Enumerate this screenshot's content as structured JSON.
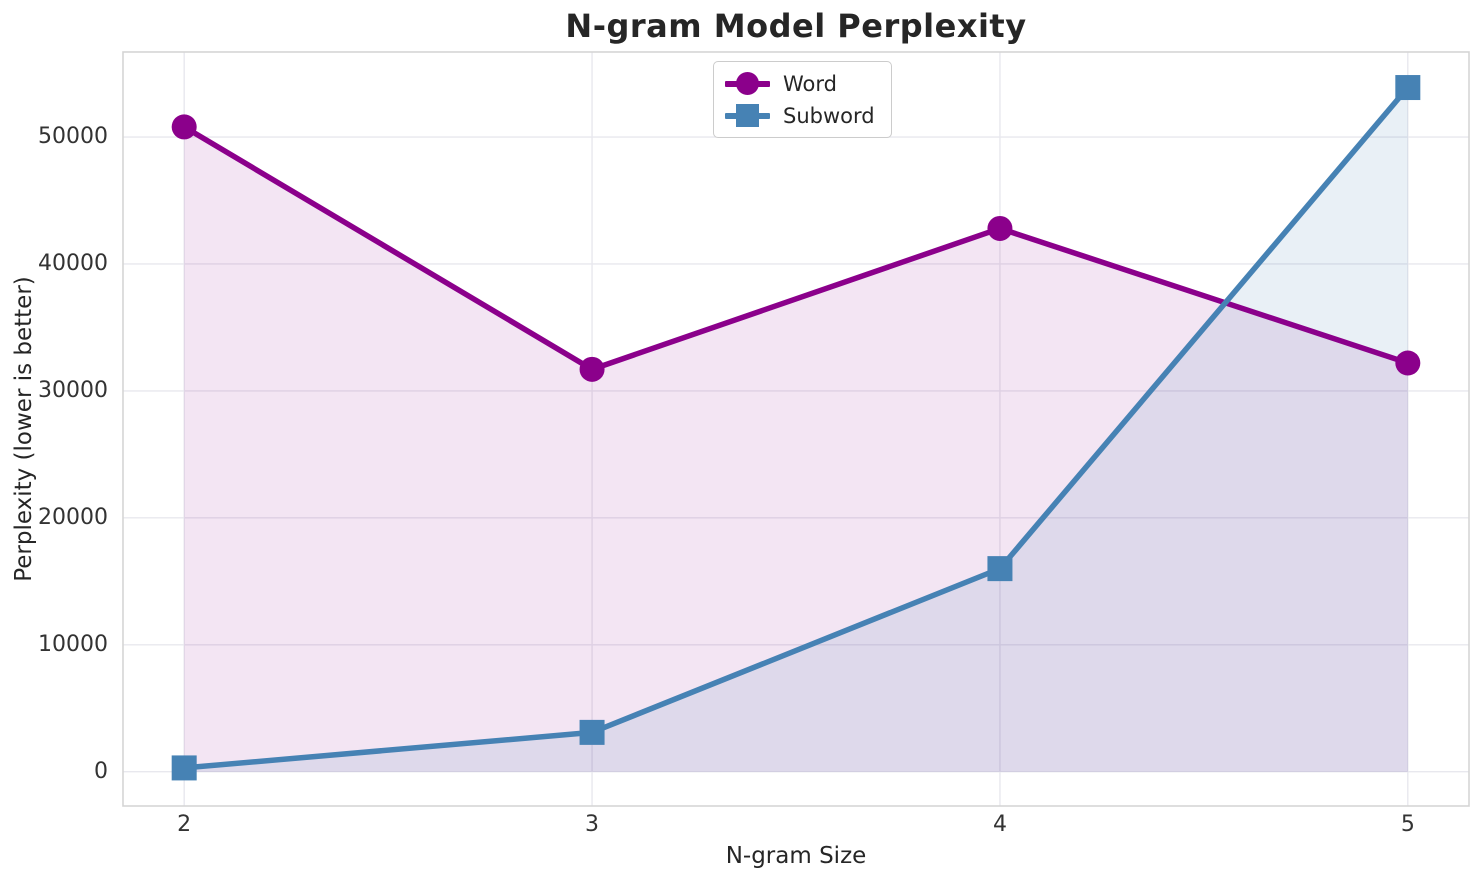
{
  "title": "N-gram Model Perplexity",
  "legend": {
    "position": "top-center",
    "items": [
      {
        "label": "Word",
        "color": "#8B008B",
        "marker": "circle"
      },
      {
        "label": "Subword",
        "color": "#4682B4",
        "marker": "square"
      }
    ]
  },
  "chart_data": {
    "type": "line",
    "title": "N-gram Model Perplexity",
    "xlabel": "N-gram Size",
    "ylabel": "Perplexity (lower is better)",
    "x": [
      2,
      3,
      4,
      5
    ],
    "series": [
      {
        "name": "Word",
        "color": "#8B008B",
        "marker": "circle",
        "values": [
          50800,
          31700,
          42800,
          32200
        ],
        "fill_to_zero": true,
        "fill_opacity": 0.1
      },
      {
        "name": "Subword",
        "color": "#4682B4",
        "marker": "square",
        "values": [
          300,
          3100,
          16000,
          53900
        ],
        "fill_to_zero": true,
        "fill_opacity": 0.12
      }
    ],
    "xticks": [
      2,
      3,
      4,
      5
    ],
    "yticks": [
      0,
      10000,
      20000,
      30000,
      40000,
      50000
    ],
    "xlim": [
      1.85,
      5.15
    ],
    "ylim": [
      -2700,
      56700
    ],
    "grid": true,
    "grid_color": "#e8e8ee",
    "spine_color": "#d5d5d5",
    "line_width": 5.5,
    "legend_position": "top-center"
  }
}
